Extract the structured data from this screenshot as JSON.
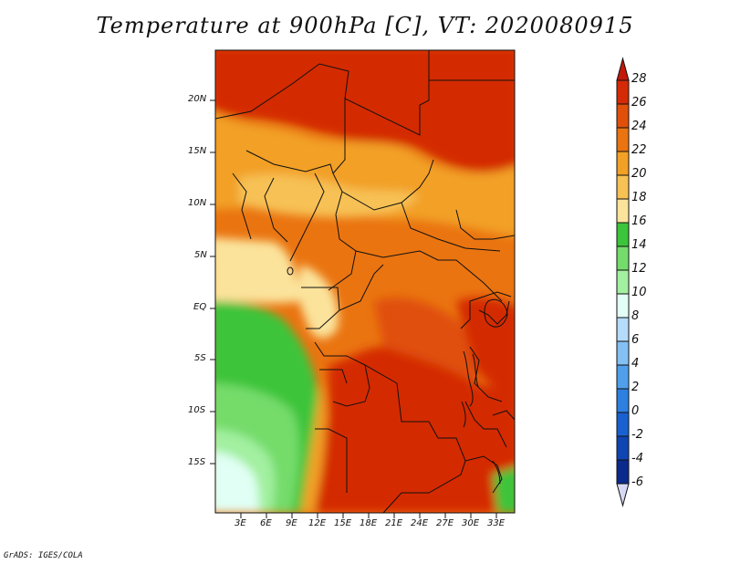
{
  "title": "Temperature at 900hPa [C], VT: 2020080915",
  "credit": "GrADS: IGES/COLA",
  "map": {
    "lat_labels": [
      "20N",
      "15N",
      "10N",
      "5N",
      "EQ",
      "5S",
      "10S",
      "15S"
    ],
    "lon_labels": [
      "3E",
      "6E",
      "9E",
      "12E",
      "15E",
      "18E",
      "21E",
      "24E",
      "27E",
      "30E",
      "33E"
    ]
  },
  "colorbar": {
    "labels": [
      "28",
      "26",
      "24",
      "22",
      "20",
      "18",
      "16",
      "14",
      "12",
      "10",
      "8",
      "6",
      "4",
      "2",
      "0",
      "-2",
      "-4",
      "-6"
    ],
    "colors": [
      "#d42a06",
      "#e0500a",
      "#ea7410",
      "#f2a026",
      "#f7c154",
      "#fbe39b",
      "#3cc43a",
      "#74dc6b",
      "#a2f0a0",
      "#e1fff5",
      "#b5dcfa",
      "#84c0f3",
      "#509fea",
      "#2d7fe0",
      "#1961d0",
      "#0f45b2",
      "#0a2a8c"
    ],
    "top_color": "#c3190a",
    "bottom_color": "#d6d8f4"
  }
}
